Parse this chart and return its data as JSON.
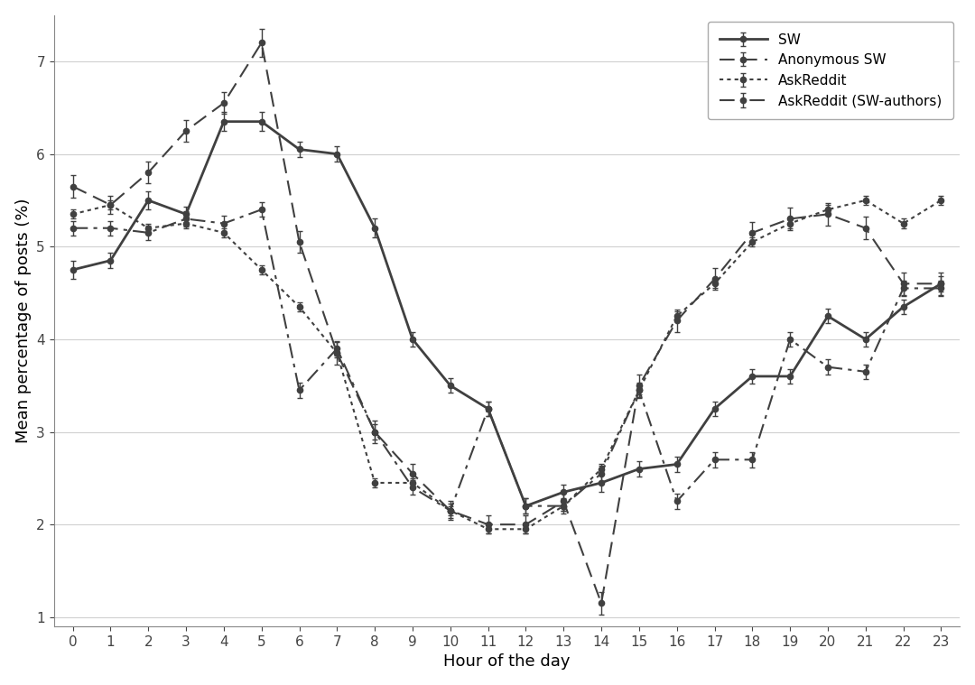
{
  "hours": [
    0,
    1,
    2,
    3,
    4,
    5,
    6,
    7,
    8,
    9,
    10,
    11,
    12,
    13,
    14,
    15,
    16,
    17,
    18,
    19,
    20,
    21,
    22,
    23
  ],
  "SW": [
    4.75,
    4.85,
    5.5,
    5.35,
    6.35,
    6.35,
    6.05,
    6.0,
    5.2,
    4.0,
    3.5,
    3.25,
    2.2,
    2.35,
    2.45,
    2.6,
    2.65,
    3.25,
    3.6,
    3.6,
    4.25,
    4.0,
    4.35,
    4.6
  ],
  "Anonymous_SW": [
    5.65,
    5.45,
    5.8,
    6.25,
    6.55,
    7.2,
    5.05,
    3.85,
    3.0,
    2.55,
    2.15,
    2.0,
    2.0,
    2.25,
    1.15,
    3.5,
    4.2,
    4.65,
    5.15,
    5.3,
    5.35,
    5.2,
    4.6,
    4.6
  ],
  "AskReddit": [
    5.35,
    5.45,
    5.2,
    5.25,
    5.15,
    4.75,
    4.35,
    3.85,
    2.45,
    2.45,
    2.15,
    1.95,
    1.95,
    2.2,
    2.6,
    3.45,
    4.25,
    4.6,
    5.05,
    5.25,
    5.4,
    5.5,
    5.25,
    5.5
  ],
  "AskReddit_SW_authors": [
    5.2,
    5.2,
    5.15,
    5.3,
    5.25,
    5.4,
    3.45,
    3.9,
    3.0,
    2.4,
    2.15,
    3.25,
    2.2,
    2.2,
    2.55,
    3.45,
    2.25,
    2.7,
    2.7,
    4.0,
    3.7,
    3.65,
    4.55,
    4.55
  ],
  "SW_err": [
    0.1,
    0.08,
    0.1,
    0.08,
    0.1,
    0.1,
    0.08,
    0.08,
    0.1,
    0.08,
    0.08,
    0.08,
    0.08,
    0.08,
    0.1,
    0.08,
    0.08,
    0.08,
    0.08,
    0.08,
    0.08,
    0.08,
    0.08,
    0.08
  ],
  "Anonymous_SW_err": [
    0.12,
    0.1,
    0.12,
    0.12,
    0.12,
    0.15,
    0.12,
    0.12,
    0.12,
    0.1,
    0.1,
    0.1,
    0.1,
    0.1,
    0.12,
    0.12,
    0.12,
    0.12,
    0.12,
    0.12,
    0.12,
    0.12,
    0.12,
    0.12
  ],
  "AskReddit_err": [
    0.05,
    0.05,
    0.05,
    0.05,
    0.05,
    0.05,
    0.05,
    0.05,
    0.05,
    0.05,
    0.05,
    0.05,
    0.05,
    0.05,
    0.05,
    0.05,
    0.05,
    0.05,
    0.05,
    0.05,
    0.05,
    0.05,
    0.05,
    0.05
  ],
  "AskReddit_SW_authors_err": [
    0.08,
    0.08,
    0.08,
    0.08,
    0.08,
    0.08,
    0.08,
    0.08,
    0.08,
    0.08,
    0.08,
    0.08,
    0.08,
    0.08,
    0.08,
    0.08,
    0.08,
    0.08,
    0.08,
    0.08,
    0.08,
    0.08,
    0.08,
    0.08
  ],
  "ylabel": "Mean percentage of posts (%)",
  "xlabel": "Hour of the day",
  "ylim": [
    0.9,
    7.5
  ],
  "yticks": [
    1,
    2,
    3,
    4,
    5,
    6,
    7
  ],
  "background_color": "#ffffff",
  "line_color": "#404040",
  "grid_color": "#d0d0d0",
  "legend_labels": [
    "SW",
    "Anonymous SW",
    "AskReddit",
    "AskReddit (SW-authors)"
  ]
}
